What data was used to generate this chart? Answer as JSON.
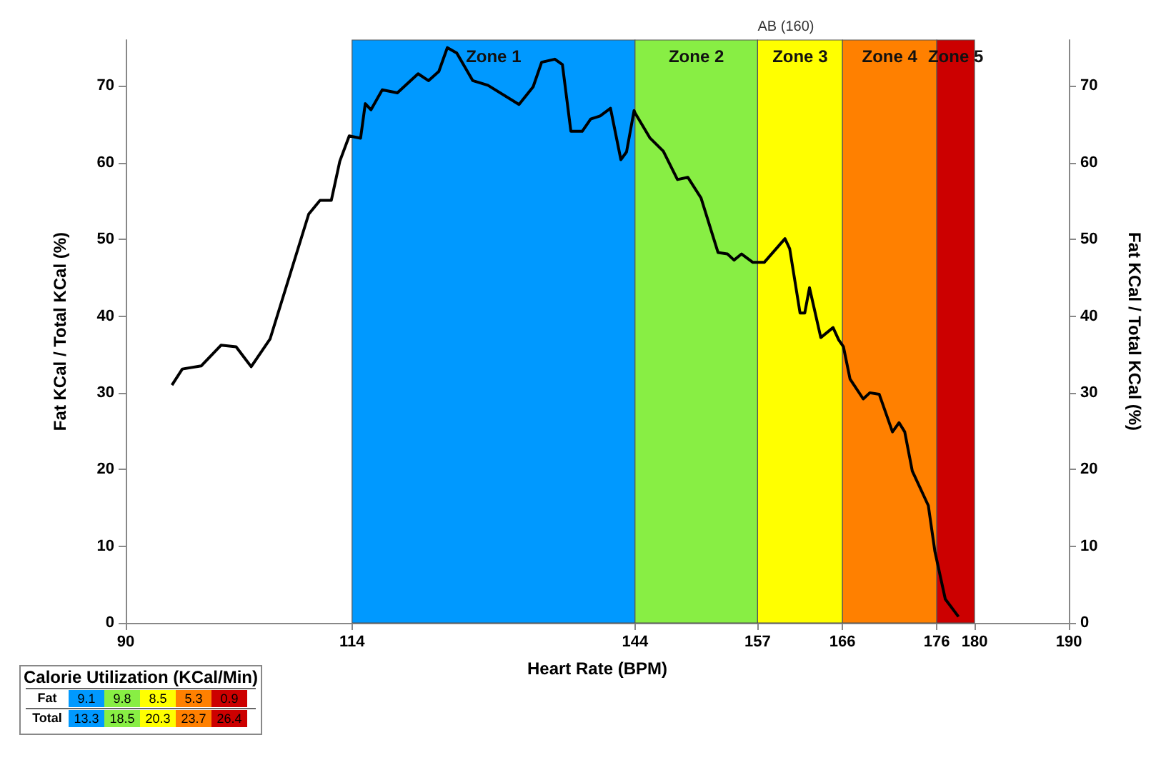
{
  "chart_data": {
    "type": "line",
    "xlabel": "Heart Rate (BPM)",
    "ylabel": "Fat KCal / Total KCal (%)",
    "y2label": "Fat KCal / Total KCal (%)",
    "xlim": [
      90,
      190
    ],
    "xticks": [
      90,
      114,
      144,
      157,
      166,
      176,
      180,
      190
    ],
    "ylim": [
      0,
      76
    ],
    "yticks": [
      0,
      10,
      20,
      30,
      40,
      50,
      60,
      70
    ],
    "y2lim": [
      0,
      76
    ],
    "y2ticks": [
      0,
      10,
      20,
      30,
      40,
      50,
      60,
      70
    ],
    "series": [
      {
        "color": "#000000",
        "x": [
          94.9,
          96.0,
          98.0,
          100.1,
          101.7,
          103.3,
          105.3,
          109.4,
          110.6,
          111.8,
          112.7,
          113.7,
          114.9,
          115.4,
          116.0,
          117.2,
          118.8,
          121.0,
          122.1,
          123.2,
          124.1,
          125.1,
          126.8,
          128.4,
          131.7,
          133.2,
          134.1,
          135.5,
          136.3,
          137.2,
          138.4,
          139.3,
          140.3,
          141.4,
          142.5,
          143.1,
          143.9,
          144.0,
          145.6,
          147.0,
          148.5,
          149.6,
          151.0,
          152.8,
          153.8,
          154.5,
          155.3,
          156.5,
          157.7,
          159.9,
          160.4,
          161.5,
          162.0,
          162.5,
          163.7,
          165.0,
          165.6,
          166.1,
          166.8,
          168.2,
          168.9,
          169.9,
          171.3,
          172.0,
          172.6,
          173.4,
          175.1,
          175.8,
          176.9,
          178.3
        ],
        "values": [
          31.0,
          33.1,
          33.5,
          36.2,
          36.0,
          33.4,
          37.0,
          53.3,
          55.1,
          55.1,
          60.2,
          63.5,
          63.2,
          67.7,
          66.9,
          69.5,
          69.1,
          71.6,
          70.7,
          71.9,
          75.0,
          74.3,
          70.7,
          70.1,
          67.6,
          69.9,
          73.1,
          73.5,
          72.8,
          64.1,
          64.1,
          65.7,
          66.1,
          67.1,
          60.4,
          61.4,
          66.8,
          66.5,
          63.2,
          61.5,
          57.8,
          58.1,
          55.4,
          48.3,
          48.1,
          47.3,
          48.1,
          47.0,
          47.0,
          50.1,
          48.8,
          40.4,
          40.4,
          43.7,
          37.2,
          38.5,
          36.9,
          36.0,
          31.8,
          29.2,
          30.0,
          29.8,
          24.9,
          26.1,
          24.9,
          19.8,
          15.3,
          9.3,
          3.1,
          0.8
        ]
      }
    ],
    "bands": [
      {
        "axis": "x",
        "from": 114,
        "to": 144,
        "label": "Zone 1",
        "color": "#0099ff"
      },
      {
        "axis": "x",
        "from": 144,
        "to": 157,
        "label": "Zone 2",
        "color": "#88ee44"
      },
      {
        "axis": "x",
        "from": 157,
        "to": 166,
        "label": "Zone 3",
        "color": "#ffff00"
      },
      {
        "axis": "x",
        "from": 166,
        "to": 176,
        "label": "Zone 4",
        "color": "#ff8000"
      },
      {
        "axis": "x",
        "from": 176,
        "to": 180,
        "label": "Zone 5",
        "color": "#cc0000"
      }
    ],
    "annotations": [
      {
        "text": "AB (160)",
        "x": 160,
        "y": 76
      },
      "Calorie Utilization (KCal/Min)",
      "Fat",
      "9.1",
      "9.8",
      "8.5",
      "5.3",
      "0.9",
      "Total",
      "13.3",
      "18.5",
      "20.3",
      "23.7",
      "26.4"
    ],
    "grid": false,
    "marker": "none",
    "line_style": "solid"
  }
}
